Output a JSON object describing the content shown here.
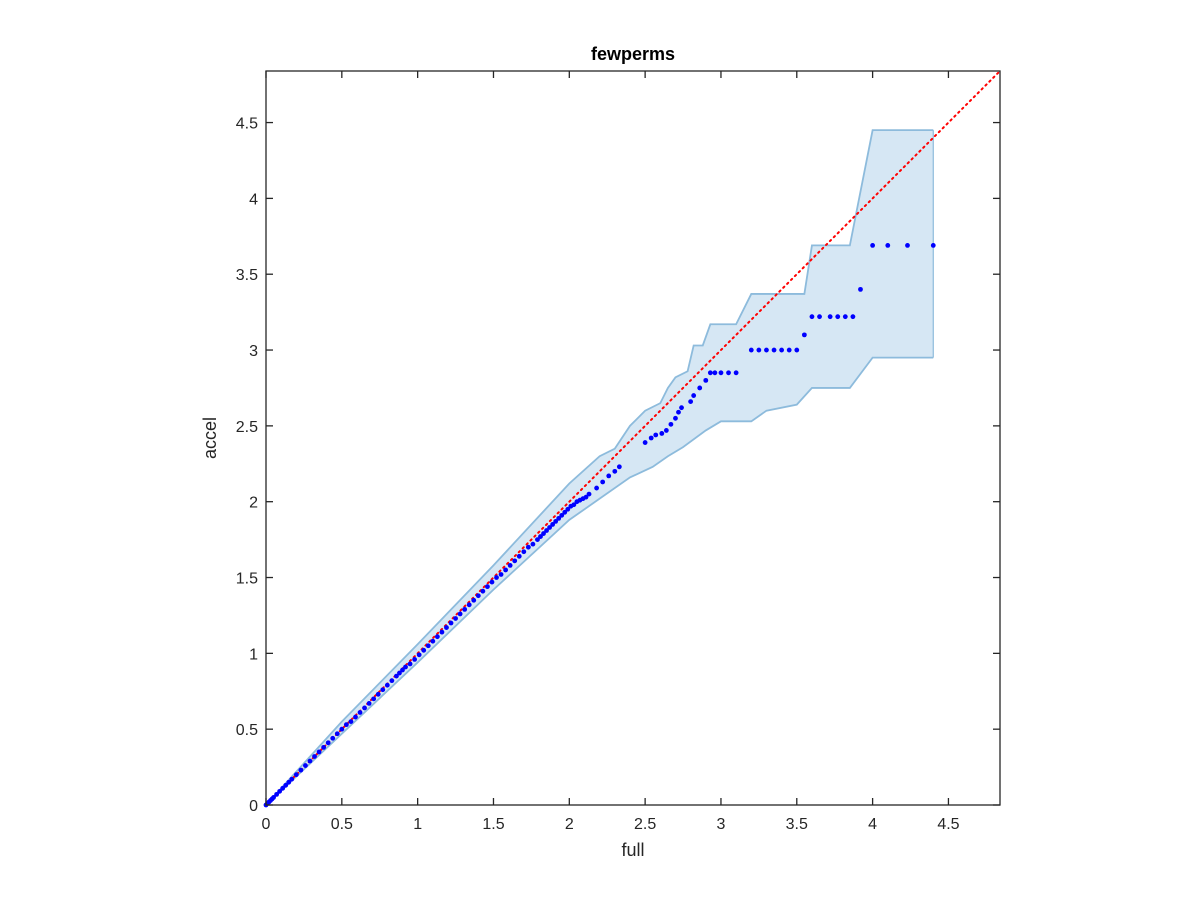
{
  "chart_data": {
    "type": "scatter",
    "title": "fewperms",
    "xlabel": "full",
    "ylabel": "accel",
    "xlim": [
      0,
      4.84
    ],
    "ylim": [
      0,
      4.84
    ],
    "x_ticks": [
      0,
      0.5,
      1,
      1.5,
      2,
      2.5,
      3,
      3.5,
      4,
      4.5
    ],
    "y_ticks": [
      0,
      0.5,
      1,
      1.5,
      2,
      2.5,
      3,
      3.5,
      4,
      4.5
    ],
    "x_tick_labels": [
      "0",
      "0.5",
      "1",
      "1.5",
      "2",
      "2.5",
      "3",
      "3.5",
      "4",
      "4.5"
    ],
    "y_tick_labels": [
      "0",
      "0.5",
      "1",
      "1.5",
      "2",
      "2.5",
      "3",
      "3.5",
      "4",
      "4.5"
    ],
    "grid": false,
    "box": true,
    "colors": {
      "points": "#0000ff",
      "band_fill": "#d6e7f4",
      "band_edge": "#8dbbdc",
      "reference_line": "#ff0000",
      "axes": "#262626"
    },
    "reference_line": {
      "style": "dotted",
      "x": [
        0,
        4.84
      ],
      "y": [
        0,
        4.84
      ]
    },
    "band": {
      "upper": [
        [
          0,
          0
        ],
        [
          0.5,
          0.55
        ],
        [
          1.0,
          1.06
        ],
        [
          1.5,
          1.58
        ],
        [
          2.0,
          2.12
        ],
        [
          2.2,
          2.3
        ],
        [
          2.3,
          2.35
        ],
        [
          2.4,
          2.5
        ],
        [
          2.5,
          2.6
        ],
        [
          2.6,
          2.65
        ],
        [
          2.65,
          2.75
        ],
        [
          2.7,
          2.82
        ],
        [
          2.78,
          2.86
        ],
        [
          2.82,
          3.03
        ],
        [
          2.88,
          3.03
        ],
        [
          2.93,
          3.17
        ],
        [
          3.1,
          3.17
        ],
        [
          3.2,
          3.37
        ],
        [
          3.55,
          3.37
        ],
        [
          3.6,
          3.69
        ],
        [
          3.85,
          3.69
        ],
        [
          4.0,
          4.45
        ],
        [
          4.4,
          4.45
        ]
      ],
      "lower": [
        [
          0,
          0
        ],
        [
          0.5,
          0.47
        ],
        [
          1.0,
          0.94
        ],
        [
          1.5,
          1.42
        ],
        [
          2.0,
          1.88
        ],
        [
          2.2,
          2.02
        ],
        [
          2.4,
          2.16
        ],
        [
          2.55,
          2.23
        ],
        [
          2.65,
          2.3
        ],
        [
          2.75,
          2.36
        ],
        [
          2.9,
          2.47
        ],
        [
          3.0,
          2.53
        ],
        [
          3.2,
          2.53
        ],
        [
          3.3,
          2.6
        ],
        [
          3.5,
          2.64
        ],
        [
          3.6,
          2.75
        ],
        [
          3.85,
          2.75
        ],
        [
          4.0,
          2.95
        ],
        [
          4.4,
          2.95
        ]
      ]
    },
    "points": {
      "x": [
        0,
        0.01,
        0.02,
        0.03,
        0.04,
        0.05,
        0.07,
        0.09,
        0.11,
        0.13,
        0.15,
        0.17,
        0.2,
        0.23,
        0.26,
        0.29,
        0.32,
        0.35,
        0.38,
        0.41,
        0.44,
        0.47,
        0.5,
        0.53,
        0.56,
        0.59,
        0.62,
        0.65,
        0.68,
        0.71,
        0.74,
        0.77,
        0.8,
        0.83,
        0.86,
        0.88,
        0.9,
        0.92,
        0.95,
        0.98,
        1.01,
        1.04,
        1.07,
        1.1,
        1.13,
        1.16,
        1.19,
        1.22,
        1.25,
        1.28,
        1.31,
        1.34,
        1.37,
        1.4,
        1.43,
        1.46,
        1.49,
        1.52,
        1.55,
        1.58,
        1.61,
        1.64,
        1.67,
        1.7,
        1.73,
        1.76,
        1.79,
        1.81,
        1.83,
        1.85,
        1.87,
        1.89,
        1.91,
        1.93,
        1.95,
        1.97,
        1.99,
        2.01,
        2.03,
        2.05,
        2.07,
        2.09,
        2.11,
        2.13,
        2.18,
        2.22,
        2.26,
        2.3,
        2.33,
        2.5,
        2.54,
        2.57,
        2.61,
        2.64,
        2.67,
        2.7,
        2.72,
        2.74,
        2.8,
        2.82,
        2.86,
        2.9,
        2.93,
        2.96,
        3.0,
        3.05,
        3.1,
        3.2,
        3.25,
        3.3,
        3.35,
        3.4,
        3.45,
        3.5,
        3.55,
        3.6,
        3.65,
        3.72,
        3.77,
        3.82,
        3.87,
        3.92,
        4.0,
        4.1,
        4.23,
        4.4
      ],
      "y": [
        0,
        0.01,
        0.02,
        0.03,
        0.04,
        0.05,
        0.07,
        0.09,
        0.11,
        0.13,
        0.15,
        0.17,
        0.2,
        0.23,
        0.26,
        0.29,
        0.32,
        0.35,
        0.38,
        0.41,
        0.44,
        0.47,
        0.5,
        0.53,
        0.55,
        0.58,
        0.61,
        0.64,
        0.67,
        0.7,
        0.73,
        0.76,
        0.79,
        0.82,
        0.85,
        0.87,
        0.89,
        0.91,
        0.93,
        0.96,
        0.99,
        1.02,
        1.05,
        1.08,
        1.11,
        1.14,
        1.17,
        1.2,
        1.23,
        1.26,
        1.29,
        1.32,
        1.35,
        1.38,
        1.41,
        1.44,
        1.47,
        1.5,
        1.52,
        1.55,
        1.58,
        1.61,
        1.64,
        1.67,
        1.7,
        1.72,
        1.75,
        1.77,
        1.79,
        1.81,
        1.83,
        1.85,
        1.87,
        1.89,
        1.91,
        1.93,
        1.95,
        1.97,
        1.98,
        2.0,
        2.01,
        2.02,
        2.03,
        2.05,
        2.09,
        2.13,
        2.17,
        2.2,
        2.23,
        2.39,
        2.42,
        2.44,
        2.45,
        2.47,
        2.51,
        2.55,
        2.59,
        2.62,
        2.66,
        2.7,
        2.75,
        2.8,
        2.85,
        2.85,
        2.85,
        2.85,
        2.85,
        3.0,
        3.0,
        3.0,
        3.0,
        3.0,
        3.0,
        3.0,
        3.1,
        3.22,
        3.22,
        3.22,
        3.22,
        3.22,
        3.22,
        3.4,
        3.69,
        3.69,
        3.69,
        3.69
      ]
    }
  }
}
